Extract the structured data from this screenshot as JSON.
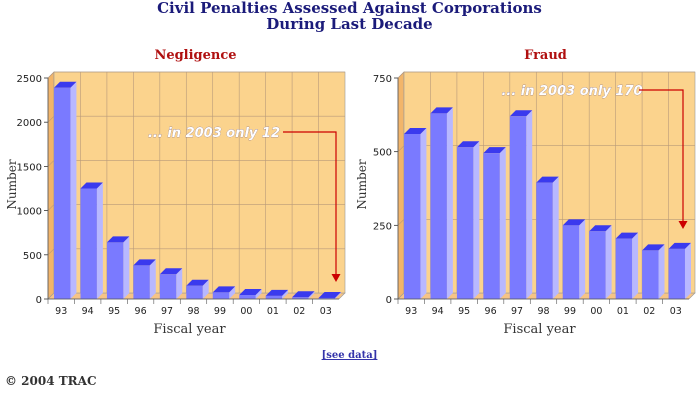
{
  "title_line1": "Civil Penalties Assessed Against Corporations",
  "title_line2": "During Last Decade",
  "see_data": "[see data]",
  "copyright": "© 2004 TRAC",
  "colors": {
    "title": "#1b1b7a",
    "panel_title": "#b01010",
    "plot_bg": "#fbd38d",
    "bar_front": "#7a7aff",
    "bar_side": "#b8b8ff",
    "bar_top": "#3a3aee",
    "annotation": "#ffffff",
    "arrow": "#cc0000"
  },
  "chart_data": [
    {
      "type": "bar",
      "title": "Negligence",
      "xlabel": "Fiscal year",
      "ylabel": "Number",
      "categories": [
        "93",
        "94",
        "95",
        "96",
        "97",
        "98",
        "99",
        "00",
        "01",
        "02",
        "03"
      ],
      "values": [
        2390,
        1250,
        640,
        380,
        280,
        150,
        75,
        45,
        35,
        20,
        12
      ],
      "ylim": [
        0,
        2500
      ],
      "yticks": [
        "0",
        "500",
        "1000",
        "1500",
        "2000",
        "2500"
      ],
      "annotation": "... in 2003 only 12",
      "grid": true
    },
    {
      "type": "bar",
      "title": "Fraud",
      "xlabel": "Fiscal year",
      "ylabel": "Number",
      "categories": [
        "93",
        "94",
        "95",
        "96",
        "97",
        "98",
        "99",
        "00",
        "01",
        "02",
        "03"
      ],
      "values": [
        560,
        630,
        515,
        495,
        620,
        395,
        250,
        230,
        205,
        165,
        170
      ],
      "ylim": [
        0,
        750
      ],
      "yticks": [
        "0",
        "250",
        "500",
        "750"
      ],
      "annotation": "... in 2003 only 170",
      "grid": true
    }
  ]
}
